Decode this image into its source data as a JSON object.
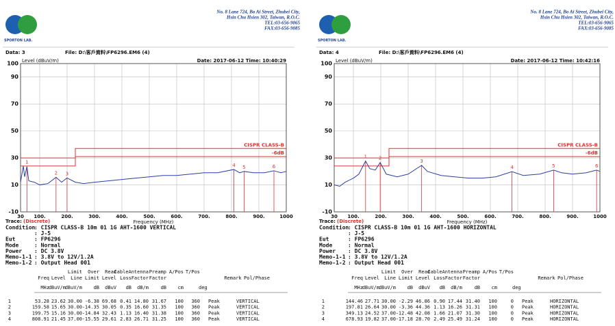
{
  "chart_data": [
    {
      "type": "line",
      "ylabel": "Level (dBuV/m)",
      "xlabel": "Frequency (MHz)",
      "subtitle": "Date: 2017-06-12 Time: 10:40:29",
      "xlim": [
        30,
        1000
      ],
      "xticks": [
        30,
        {
          "value": 100,
          "label": "100."
        },
        {
          "value": 200,
          "label": "200."
        },
        {
          "value": 300,
          "label": "300."
        },
        {
          "value": 400,
          "label": "400."
        },
        {
          "value": 500,
          "label": "500."
        },
        {
          "value": 600,
          "label": "600."
        },
        {
          "value": 700,
          "label": "700."
        },
        {
          "value": 800,
          "label": "800."
        },
        {
          "value": 900,
          "label": "900."
        },
        1000
      ],
      "ylim": [
        -10,
        100
      ],
      "yticks": [
        -10,
        10,
        30,
        50,
        70,
        90,
        100
      ],
      "grid": true,
      "x": [
        30,
        40,
        45,
        53.28,
        60,
        80,
        100,
        130,
        159.58,
        180,
        199.75,
        230,
        260,
        300,
        350,
        400,
        450,
        500,
        550,
        600,
        650,
        700,
        750,
        808.91,
        830,
        846,
        880,
        920,
        955,
        980,
        1000
      ],
      "series": [
        {
          "color": "#2a3fa0",
          "values": [
            12,
            24,
            16,
            23.62,
            13,
            12,
            10,
            11,
            15.65,
            12,
            15.16,
            12,
            11,
            12,
            13,
            14,
            15,
            16,
            17,
            17,
            18,
            19,
            19,
            21.45,
            19,
            20,
            19,
            19,
            20.5,
            19,
            20
          ]
        }
      ],
      "limit_lines": [
        {
          "label": "CISPR CLASS-B",
          "color": "#e03030",
          "x": [
            30,
            230,
            230,
            1000
          ],
          "values": [
            30,
            30,
            37,
            37
          ]
        },
        {
          "label": "-6dB",
          "color": "#e03030",
          "x": [
            30,
            230,
            230,
            1000
          ],
          "values": [
            24,
            24,
            31,
            31
          ]
        }
      ],
      "markers": {
        "color": "#e03030",
        "labels": [
          "1",
          "2",
          "3",
          "4",
          "5",
          "6"
        ],
        "x": [
          53.28,
          159.58,
          199.75,
          808.91,
          846,
          955
        ],
        "values": [
          23.62,
          15.65,
          15.16,
          21.45,
          20,
          20.5
        ]
      }
    },
    {
      "type": "line",
      "ylabel": "Level (dBuV/m)",
      "xlabel": "Frequency (MHz)",
      "subtitle": "Date: 2017-06-12 Time: 10:42:16",
      "xlim": [
        30,
        1000
      ],
      "xticks": [
        30,
        {
          "value": 100,
          "label": "100."
        },
        {
          "value": 200,
          "label": "200."
        },
        {
          "value": 300,
          "label": "300."
        },
        {
          "value": 400,
          "label": "400."
        },
        {
          "value": 500,
          "label": "500."
        },
        {
          "value": 600,
          "label": "600."
        },
        {
          "value": 700,
          "label": "700."
        },
        {
          "value": 800,
          "label": "800."
        },
        {
          "value": 900,
          "label": "900."
        },
        1000
      ],
      "ylim": [
        -10,
        100
      ],
      "yticks": [
        -10,
        10,
        30,
        50,
        70,
        90,
        100
      ],
      "grid": true,
      "x": [
        30,
        50,
        70,
        100,
        120,
        144.46,
        160,
        180,
        197.81,
        220,
        260,
        300,
        330,
        349.13,
        370,
        420,
        470,
        520,
        570,
        620,
        678.93,
        720,
        780,
        831,
        860,
        900,
        950,
        988,
        1000
      ],
      "series": [
        {
          "color": "#2a3fa0",
          "values": [
            10,
            9,
            12,
            15,
            18,
            27.71,
            22,
            21,
            26.64,
            18,
            16,
            18,
            22,
            24.52,
            20,
            17,
            16,
            15,
            15,
            16,
            19.82,
            17,
            18,
            21,
            19,
            18,
            19,
            21,
            20
          ]
        }
      ],
      "limit_lines": [
        {
          "label": "CISPR CLASS-B",
          "color": "#e03030",
          "x": [
            30,
            230,
            230,
            1000
          ],
          "values": [
            30,
            30,
            37,
            37
          ]
        },
        {
          "label": "-6dB",
          "color": "#e03030",
          "x": [
            30,
            230,
            230,
            1000
          ],
          "values": [
            24,
            24,
            31,
            31
          ]
        }
      ],
      "markers": {
        "color": "#e03030",
        "labels": [
          "1",
          "2",
          "3",
          "4",
          "5",
          "6"
        ],
        "x": [
          144.46,
          197.81,
          349.13,
          678.93,
          831,
          988
        ],
        "values": [
          27.71,
          26.64,
          24.52,
          19.82,
          21,
          21
        ]
      }
    }
  ],
  "reports": [
    {
      "logo": "SPORTON LAB.",
      "address": [
        "No. 8 Lane 724, Bo Ai Street, Zhubei City,",
        "Hsin Chu Hsien 302, Taiwan, R.O.C.",
        "TEL:03-656-9065",
        "FAX:03-656-9085"
      ],
      "data": "Data: 3",
      "file": "File: D:\\客戶資料\\FP6296.EM6 (4)",
      "trace": "Trace:",
      "trace_mode": "(Discrete)",
      "conditions": [
        {
          "label": "Condition",
          "value": ": CISPR CLASS-B 10m 01 1G AHT-1600 VERTICAL"
        },
        {
          "value": ": J-5"
        },
        {
          "label": "Eut",
          "value": ": FP6296"
        },
        {
          "label": "Mode",
          "value": ": Normal"
        },
        {
          "label": "Power",
          "value": ": DC 3.8V"
        },
        {
          "label": "Memo-1-1",
          "value": ": 3.8V to 12V/1.2A"
        },
        {
          "label": "Memo-1-2",
          "value": ": Output Head 001"
        }
      ],
      "header_top": [
        "Limit",
        "Over",
        "Read",
        "CableAntenna",
        "Preamp",
        "A/Pos",
        "T/Pos"
      ],
      "header_mid": [
        "Freq",
        "Level",
        "Line",
        "Limit",
        "Level",
        "Loss",
        "Factor",
        "Factor",
        "Remark",
        "Pol/Phase"
      ],
      "units": [
        "MHz",
        "dBuV/m",
        "dBuV/m",
        "dB",
        "dBuV",
        "dB",
        "dB/m",
        "dB",
        "cm",
        "deg"
      ],
      "rows": [
        [
          "1",
          "53.28",
          "23.62",
          "30.00",
          "-6.38",
          "69.68",
          "0.41",
          "14.80",
          "31.67",
          "100",
          "360",
          "Peak",
          "VERTICAL"
        ],
        [
          "2",
          "159.58",
          "15.65",
          "30.00",
          "-14.35",
          "30.05",
          "0.35",
          "16.60",
          "31.35",
          "100",
          "360",
          "Peak",
          "VERTICAL"
        ],
        [
          "3",
          "199.75",
          "15.16",
          "30.00",
          "-14.84",
          "32.43",
          "1.13",
          "16.40",
          "31.38",
          "100",
          "360",
          "Peak",
          "VERTICAL"
        ],
        [
          "4",
          "808.91",
          "21.45",
          "37.00",
          "-15.55",
          "29.61",
          "2.83",
          "26.71",
          "31.25",
          "100",
          "360",
          "Peak",
          "VERTICAL"
        ]
      ]
    },
    {
      "logo": "SPORTON LAB.",
      "address": [
        "No. 8 Lane 724, Bo Ai Street, Zhubei City,",
        "Hsin Chu Hsien 302, Taiwan, R.O.C.",
        "TEL:03-656-9065",
        "FAX:03-656-9085"
      ],
      "data": "Data: 4",
      "file": "File: D:\\客戶資料\\FP6296.EM6 (4)",
      "trace": "Trace:",
      "trace_mode": "(Discrete)",
      "conditions": [
        {
          "label": "Condition",
          "value": ": CISPR CLASS-B 10m 01 1G AHT-1600 HORIZONTAL"
        },
        {
          "value": ": J-5"
        },
        {
          "label": "Eut",
          "value": ": FP6296"
        },
        {
          "label": "Mode",
          "value": ": Normal"
        },
        {
          "label": "Power",
          "value": ": DC 3.8V"
        },
        {
          "label": "Memo-1-1",
          "value": ": 3.8V to 12V/1.2A"
        },
        {
          "label": "Memo-1-2",
          "value": ": Output Head 001"
        }
      ],
      "header_top": [
        "Limit",
        "Over",
        "Read",
        "CableAntenna",
        "Preamp",
        "A/Pos",
        "T/Pos"
      ],
      "header_mid": [
        "Freq",
        "Level",
        "Line",
        "Limit",
        "Level",
        "Loss",
        "Factor",
        "Factor",
        "Remark",
        "Pol/Phase"
      ],
      "units": [
        "MHz",
        "dBuV/m",
        "dBuV/m",
        "dB",
        "dBuV",
        "dB",
        "dB/m",
        "dB",
        "cm",
        "deg"
      ],
      "rows": [
        [
          "1",
          "144.46",
          "27.71",
          "30.00",
          "-2.29",
          "46.86",
          "0.90",
          "17.44",
          "31.40",
          "100",
          "0",
          "Peak",
          "HORIZONTAL"
        ],
        [
          "2",
          "197.81",
          "26.64",
          "30.00",
          "-3.36",
          "44.36",
          "1.13",
          "16.26",
          "31.31",
          "100",
          "0",
          "Peak",
          "HORIZONTAL"
        ],
        [
          "3",
          "349.13",
          "24.52",
          "37.00",
          "-12.48",
          "42.08",
          "1.66",
          "21.07",
          "31.30",
          "100",
          "0",
          "Peak",
          "HORIZONTAL"
        ],
        [
          "4",
          "678.93",
          "19.82",
          "37.00",
          "-17.18",
          "28.70",
          "2.49",
          "25.49",
          "31.24",
          "100",
          "0",
          "Peak",
          "HORIZONTAL"
        ]
      ]
    }
  ]
}
